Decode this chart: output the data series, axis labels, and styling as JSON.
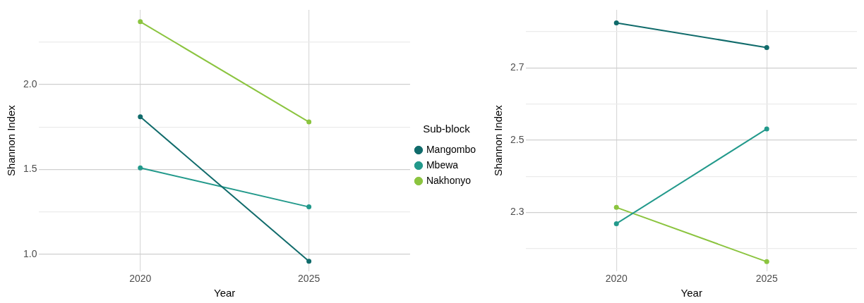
{
  "chart_data": [
    {
      "type": "line",
      "xlabel": "Year",
      "ylabel": "Shannon Index",
      "legend_title": "Sub-block",
      "legend": "right",
      "grid": true,
      "marker": "circle",
      "line_style": "solid",
      "categories": [
        "2020",
        "2025"
      ],
      "ylim": [
        0.9,
        2.44
      ],
      "yticks": [
        {
          "value": 1.0,
          "label": "1.0"
        },
        {
          "value": 1.25,
          "label": null
        },
        {
          "value": 1.5,
          "label": "1.5"
        },
        {
          "value": 1.75,
          "label": null
        },
        {
          "value": 2.0,
          "label": "2.0"
        },
        {
          "value": 2.25,
          "label": null
        }
      ],
      "series": [
        {
          "name": "Mangombo",
          "color": "#106b6b",
          "values": [
            1.81,
            0.96
          ]
        },
        {
          "name": "Mbewa",
          "color": "#22998b",
          "values": [
            1.51,
            1.28
          ]
        },
        {
          "name": "Nakhonyo",
          "color": "#8bc43f",
          "values": [
            2.37,
            1.78
          ]
        }
      ]
    },
    {
      "type": "line",
      "xlabel": "Year",
      "ylabel": "Shannon Index",
      "grid": true,
      "marker": "circle",
      "line_style": "solid",
      "categories": [
        "2020",
        "2025"
      ],
      "ylim": [
        2.137,
        2.86
      ],
      "yticks": [
        {
          "value": 2.2,
          "label": null
        },
        2.3,
        {
          "value": 2.4,
          "label": null
        },
        2.5,
        {
          "value": 2.6,
          "label": null
        },
        2.7,
        {
          "value": 2.8,
          "label": null
        }
      ],
      "series": [
        {
          "color": "#106b6b",
          "values": [
            2.824,
            2.756
          ]
        },
        {
          "color": "#22998b",
          "values": [
            2.269,
            2.531
          ]
        },
        {
          "color": "#8bc43f",
          "values": [
            2.314,
            2.164
          ]
        }
      ]
    }
  ]
}
